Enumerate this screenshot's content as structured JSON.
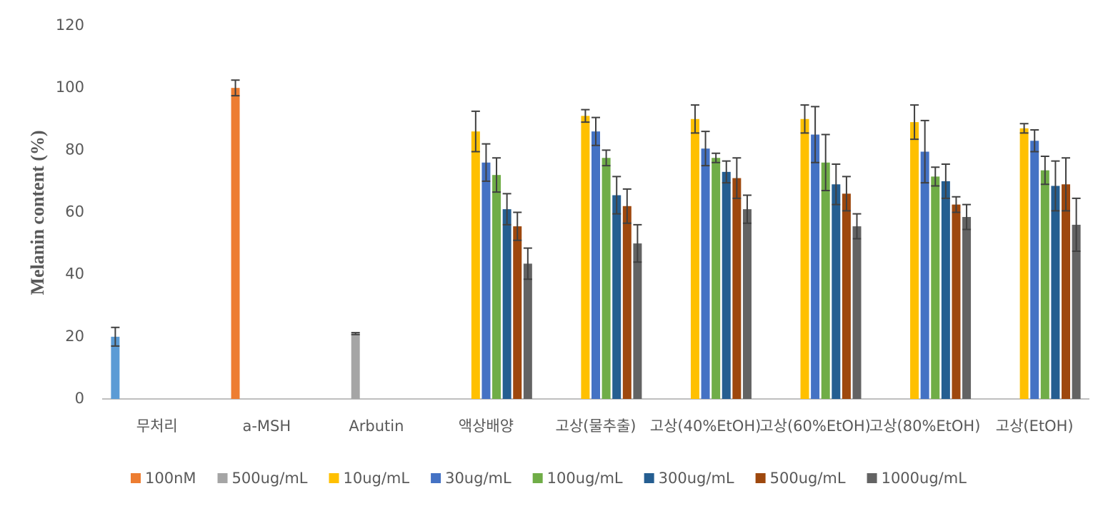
{
  "chart_data": {
    "type": "bar",
    "ylabel": "Melanin content (%)",
    "categories": [
      "무처리",
      "a-MSH",
      "Arbutin",
      "액상배양",
      "고상(물추출)",
      "고상(40%EtOH)",
      "고상(60%EtOH)",
      "고상(80%EtOH)",
      "고상(EtOH)"
    ],
    "ylim": [
      0,
      120
    ],
    "yticks": [
      0,
      20,
      40,
      60,
      80,
      100,
      120
    ],
    "grid": false,
    "legend": "bottom",
    "series": [
      {
        "color": "#5b9bd5",
        "values": [
          20,
          null,
          null,
          null,
          null,
          null,
          null,
          null,
          null
        ],
        "errors": [
          3,
          null,
          null,
          null,
          null,
          null,
          null,
          null,
          null
        ]
      },
      {
        "name": "100nM",
        "color": "#ed7d31",
        "values": [
          null,
          100,
          null,
          null,
          null,
          null,
          null,
          null,
          null
        ],
        "errors": [
          null,
          2.5,
          null,
          null,
          null,
          null,
          null,
          null,
          null
        ]
      },
      {
        "name": "500ug/mL",
        "color": "#a5a5a5",
        "values": [
          null,
          null,
          21,
          null,
          null,
          null,
          null,
          null,
          null
        ],
        "errors": [
          null,
          null,
          0.3,
          null,
          null,
          null,
          null,
          null,
          null
        ]
      },
      {
        "name": "10ug/mL",
        "color": "#ffc000",
        "values": [
          null,
          null,
          null,
          86,
          91,
          90,
          90,
          89,
          87
        ],
        "errors": [
          null,
          null,
          null,
          6.5,
          2,
          4.5,
          4.5,
          5.5,
          1.5
        ]
      },
      {
        "name": "30ug/mL",
        "color": "#4472c4",
        "values": [
          null,
          null,
          null,
          76,
          86,
          80.5,
          85,
          79.5,
          83
        ],
        "errors": [
          null,
          null,
          null,
          6,
          4.5,
          5.5,
          9,
          10,
          3.5
        ]
      },
      {
        "name": "100ug/mL",
        "color": "#70ad47",
        "values": [
          null,
          null,
          null,
          72,
          77.5,
          77.5,
          76,
          71.5,
          73.5
        ],
        "errors": [
          null,
          null,
          null,
          5.5,
          2.5,
          1.5,
          9,
          3,
          4.5
        ]
      },
      {
        "name": "300ug/mL",
        "color": "#255e91",
        "values": [
          null,
          null,
          null,
          61,
          65.5,
          73,
          69,
          70,
          68.5
        ],
        "errors": [
          null,
          null,
          null,
          5,
          6,
          3.5,
          6.5,
          5.5,
          8
        ]
      },
      {
        "name": "500ug/mL",
        "color": "#9e480e",
        "values": [
          null,
          null,
          null,
          55.5,
          62,
          71,
          66,
          62.5,
          69
        ],
        "errors": [
          null,
          null,
          null,
          4.5,
          5.5,
          6.5,
          5.5,
          2.5,
          8.5
        ]
      },
      {
        "name": "1000ug/mL",
        "color": "#636363",
        "values": [
          null,
          null,
          null,
          43.5,
          50,
          61,
          55.5,
          58.5,
          56
        ],
        "errors": [
          null,
          null,
          null,
          5,
          6,
          4.5,
          4,
          4,
          8.5
        ]
      }
    ]
  }
}
